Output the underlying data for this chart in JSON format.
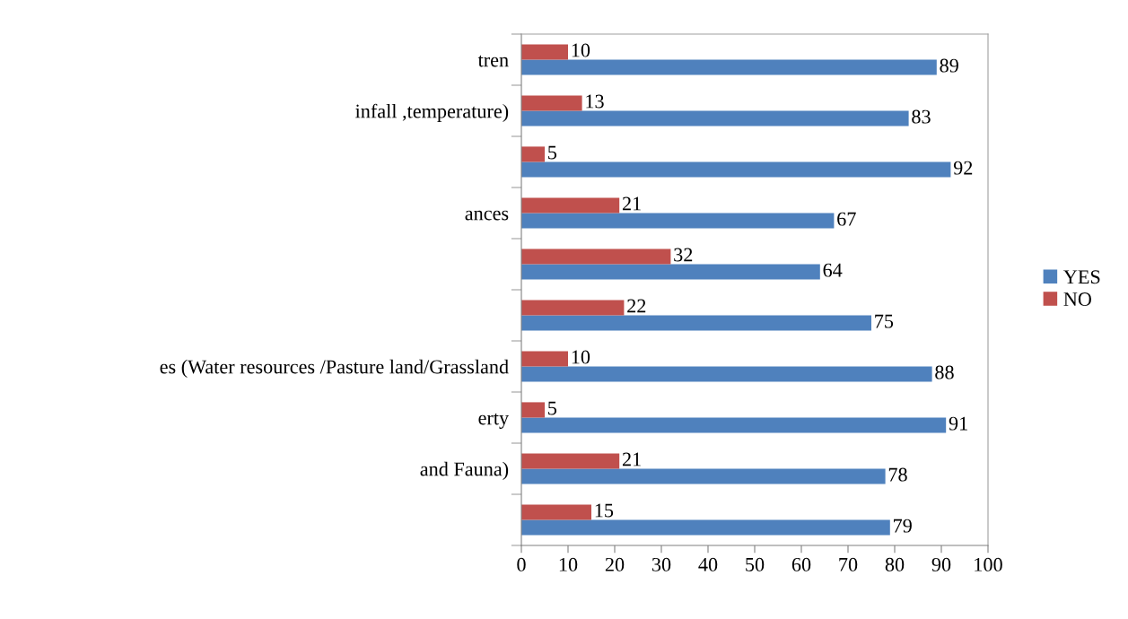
{
  "chart_data": {
    "type": "bar",
    "orientation": "horizontal",
    "categories": [
      "tren",
      "infall ,temperature)",
      null,
      "ances",
      null,
      null,
      "es (Water resources /Pasture land/Grassland",
      "erty",
      "and Fauna)",
      null
    ],
    "series": [
      {
        "name": "YES",
        "color": "#4f81bd",
        "values": [
          89,
          83,
          92,
          67,
          64,
          75,
          88,
          91,
          78,
          79
        ]
      },
      {
        "name": "NO",
        "color": "#c0504d",
        "values": [
          10,
          13,
          5,
          21,
          32,
          22,
          10,
          5,
          21,
          15
        ]
      }
    ],
    "xlim": [
      0,
      100
    ],
    "xticks": [
      0,
      10,
      20,
      30,
      40,
      50,
      60,
      70,
      80,
      90,
      100
    ],
    "data_labels": true,
    "grid": false,
    "legend": "right"
  }
}
